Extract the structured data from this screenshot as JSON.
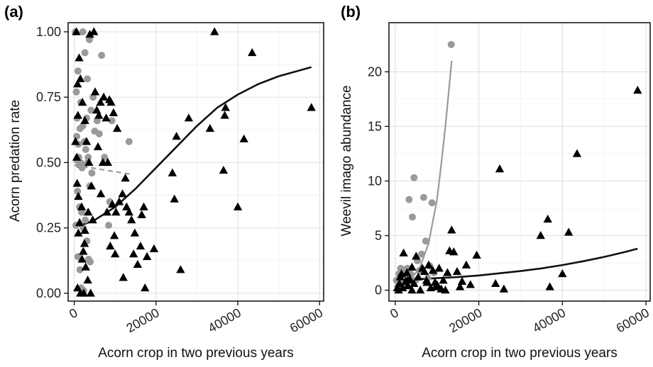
{
  "chart_data": [
    {
      "type": "scatter",
      "panel_label": "(a)",
      "xlabel": "Acorn crop in two previous years",
      "ylabel": "Acorn predation rate",
      "xlim": [
        -1500,
        61000
      ],
      "ylim": [
        -0.03,
        1.035
      ],
      "xticks": [
        0,
        20000,
        40000,
        60000
      ],
      "yticks": [
        0.0,
        0.25,
        0.5,
        0.75,
        1.0
      ],
      "ytick_labels": [
        "0.00",
        "0.25",
        "0.50",
        "0.75",
        "1.00"
      ],
      "grid": true,
      "series": [
        {
          "marker": "triangle",
          "color": "#000000",
          "points": [
            [
              500,
              1.0
            ],
            [
              800,
              0.8
            ],
            [
              300,
              0.58
            ],
            [
              600,
              0.52
            ],
            [
              1200,
              0.9
            ],
            [
              1500,
              0.82
            ],
            [
              900,
              0.68
            ],
            [
              2000,
              0.73
            ],
            [
              2600,
              0.66
            ],
            [
              3000,
              0.58
            ],
            [
              3600,
              0.5
            ],
            [
              4200,
              0.41
            ],
            [
              1800,
              0.33
            ],
            [
              1000,
              0.23
            ],
            [
              2200,
              0.16
            ],
            [
              2800,
              0.1
            ],
            [
              3300,
              0.05
            ],
            [
              4000,
              0.0
            ],
            [
              800,
              0.02
            ],
            [
              1500,
              0.0
            ],
            [
              2300,
              0.0
            ],
            [
              700,
              0.42
            ],
            [
              1300,
              0.27
            ],
            [
              3800,
              0.99
            ],
            [
              4800,
              1.0
            ],
            [
              5100,
              0.77
            ],
            [
              5500,
              0.7
            ],
            [
              6000,
              0.68
            ],
            [
              6400,
              0.73
            ],
            [
              7200,
              0.75
            ],
            [
              7800,
              0.67
            ],
            [
              8200,
              0.5
            ],
            [
              8600,
              0.74
            ],
            [
              9000,
              0.73
            ],
            [
              9600,
              0.69
            ],
            [
              10500,
              0.63
            ],
            [
              5800,
              0.56
            ],
            [
              7000,
              0.5
            ],
            [
              6500,
              0.38
            ],
            [
              9300,
              0.34
            ],
            [
              8000,
              0.31
            ],
            [
              10200,
              0.31
            ],
            [
              11000,
              0.35
            ],
            [
              11800,
              0.38
            ],
            [
              12800,
              0.33
            ],
            [
              13400,
              0.31
            ],
            [
              14000,
              0.28
            ],
            [
              14800,
              0.23
            ],
            [
              9800,
              0.22
            ],
            [
              12500,
              0.44
            ],
            [
              8800,
              0.18
            ],
            [
              10000,
              0.15
            ],
            [
              12000,
              0.06
            ],
            [
              14500,
              0.15
            ],
            [
              15500,
              0.11
            ],
            [
              16500,
              0.3
            ],
            [
              17000,
              0.33
            ],
            [
              17300,
              0.02
            ],
            [
              19500,
              0.17
            ],
            [
              17800,
              0.14
            ],
            [
              16200,
              0.18
            ],
            [
              24000,
              0.46
            ],
            [
              24500,
              0.36
            ],
            [
              25000,
              0.6
            ],
            [
              26000,
              0.09
            ],
            [
              28000,
              0.67
            ],
            [
              33200,
              0.63
            ],
            [
              34300,
              1.0
            ],
            [
              36500,
              0.47
            ],
            [
              36800,
              0.68
            ],
            [
              37000,
              0.71
            ],
            [
              40000,
              0.33
            ],
            [
              41500,
              0.59
            ],
            [
              43500,
              0.92
            ],
            [
              58000,
              0.71
            ],
            [
              1000,
              0.37
            ],
            [
              2500,
              0.19
            ],
            [
              1900,
              0.13
            ],
            [
              2600,
              0.24
            ],
            [
              4500,
              0.28
            ],
            [
              3400,
              0.31
            ]
          ]
        },
        {
          "marker": "circle",
          "color": "#9a9a9a",
          "points": [
            [
              300,
              1.0
            ],
            [
              500,
              0.77
            ],
            [
              900,
              0.85
            ],
            [
              1600,
              0.73
            ],
            [
              2100,
              1.0
            ],
            [
              2600,
              0.92
            ],
            [
              3200,
              0.82
            ],
            [
              3700,
              0.97
            ],
            [
              4100,
              0.7
            ],
            [
              4600,
              0.75
            ],
            [
              5000,
              0.62
            ],
            [
              5600,
              0.66
            ],
            [
              6100,
              0.61
            ],
            [
              6700,
              0.91
            ],
            [
              7400,
              0.52
            ],
            [
              700,
              0.67
            ],
            [
              1100,
              0.52
            ],
            [
              1500,
              0.5
            ],
            [
              1900,
              0.48
            ],
            [
              2400,
              0.49
            ],
            [
              2800,
              0.55
            ],
            [
              3300,
              0.5
            ],
            [
              3800,
              0.41
            ],
            [
              4300,
              0.46
            ],
            [
              800,
              0.39
            ],
            [
              1300,
              0.33
            ],
            [
              1800,
              0.31
            ],
            [
              2200,
              0.25
            ],
            [
              2700,
              0.28
            ],
            [
              3100,
              0.2
            ],
            [
              3500,
              0.13
            ],
            [
              3900,
              0.12
            ],
            [
              400,
              0.26
            ],
            [
              900,
              0.14
            ],
            [
              1400,
              0.09
            ],
            [
              1700,
              0.02
            ],
            [
              2300,
              0.01
            ],
            [
              600,
              0.6
            ],
            [
              1000,
              0.57
            ],
            [
              1400,
              0.63
            ],
            [
              2100,
              0.64
            ],
            [
              2500,
              0.58
            ],
            [
              3000,
              0.67
            ],
            [
              3400,
              0.52
            ],
            [
              8400,
              0.26
            ],
            [
              8700,
              0.35
            ],
            [
              9200,
              0.66
            ],
            [
              13400,
              0.58
            ],
            [
              600,
              0.51
            ],
            [
              1200,
              0.49
            ]
          ]
        }
      ],
      "fit_lines": [
        {
          "color": "#111111",
          "style": "solid",
          "points": [
            [
              0,
              0.25
            ],
            [
              5000,
              0.28
            ],
            [
              10000,
              0.33
            ],
            [
              15000,
              0.4
            ],
            [
              20000,
              0.48
            ],
            [
              25000,
              0.56
            ],
            [
              30000,
              0.64
            ],
            [
              35000,
              0.71
            ],
            [
              40000,
              0.76
            ],
            [
              45000,
              0.8
            ],
            [
              50000,
              0.83
            ],
            [
              58000,
              0.865
            ]
          ]
        },
        {
          "color": "#9a9a9a",
          "style": "dashed",
          "points": [
            [
              0,
              0.49
            ],
            [
              2000,
              0.485
            ],
            [
              4000,
              0.48
            ],
            [
              6000,
              0.475
            ],
            [
              8000,
              0.47
            ],
            [
              10000,
              0.465
            ],
            [
              12000,
              0.46
            ],
            [
              14000,
              0.455
            ]
          ]
        }
      ]
    },
    {
      "type": "scatter",
      "panel_label": "(b)",
      "xlabel": "Acorn crop in two previous years",
      "ylabel": "Weevil imago abundance",
      "xlim": [
        -1500,
        61000
      ],
      "ylim": [
        -1.0,
        24.5
      ],
      "xticks": [
        0,
        20000,
        40000,
        60000
      ],
      "yticks": [
        0,
        5,
        10,
        15,
        20
      ],
      "ytick_labels": [
        "0",
        "5",
        "10",
        "15",
        "20"
      ],
      "grid": true,
      "series": [
        {
          "marker": "triangle",
          "color": "#000000",
          "points": [
            [
              500,
              0.2
            ],
            [
              1000,
              0.6
            ],
            [
              1500,
              1.5
            ],
            [
              2000,
              3.4
            ],
            [
              2500,
              0.8
            ],
            [
              3000,
              0.4
            ],
            [
              3500,
              1.0
            ],
            [
              4000,
              2.1
            ],
            [
              4500,
              0.6
            ],
            [
              5000,
              3.1
            ],
            [
              5500,
              1.2
            ],
            [
              6000,
              0.0
            ],
            [
              6500,
              2.0
            ],
            [
              7000,
              1.7
            ],
            [
              7500,
              0.9
            ],
            [
              8000,
              2.3
            ],
            [
              8500,
              0.2
            ],
            [
              9000,
              1.8
            ],
            [
              9500,
              0.7
            ],
            [
              10000,
              0.5
            ],
            [
              10500,
              2.0
            ],
            [
              11000,
              0.1
            ],
            [
              11500,
              0.9
            ],
            [
              12000,
              0.0
            ],
            [
              12500,
              1.6
            ],
            [
              13000,
              3.6
            ],
            [
              13500,
              5.5
            ],
            [
              14000,
              3.5
            ],
            [
              14800,
              1.7
            ],
            [
              16000,
              0.8
            ],
            [
              17000,
              2.3
            ],
            [
              18000,
              0.5
            ],
            [
              19500,
              3.2
            ],
            [
              24000,
              0.6
            ],
            [
              25000,
              11.1
            ],
            [
              26000,
              0.1
            ],
            [
              34800,
              5.0
            ],
            [
              36500,
              6.5
            ],
            [
              37000,
              0.3
            ],
            [
              40000,
              1.5
            ],
            [
              41500,
              5.3
            ],
            [
              43500,
              12.5
            ],
            [
              58000,
              18.3
            ],
            [
              3000,
              0.9
            ],
            [
              4000,
              0.0
            ],
            [
              7600,
              0.7
            ],
            [
              9800,
              0.3
            ],
            [
              15500,
              0.3
            ],
            [
              1800,
              0.2
            ],
            [
              800,
              0.0
            ],
            [
              1200,
              1.2
            ],
            [
              2800,
              1.6
            ]
          ]
        },
        {
          "marker": "circle",
          "color": "#9a9a9a",
          "points": [
            [
              300,
              0.9
            ],
            [
              600,
              0.3
            ],
            [
              900,
              1.5
            ],
            [
              1300,
              2.0
            ],
            [
              1700,
              1.6
            ],
            [
              2100,
              1.2
            ],
            [
              2500,
              1.9
            ],
            [
              2900,
              2.0
            ],
            [
              3300,
              8.3
            ],
            [
              3700,
              1.5
            ],
            [
              4100,
              6.7
            ],
            [
              4500,
              10.3
            ],
            [
              4900,
              0.9
            ],
            [
              5300,
              2.7
            ],
            [
              5800,
              1.8
            ],
            [
              6300,
              3.3
            ],
            [
              6800,
              8.5
            ],
            [
              7300,
              4.5
            ],
            [
              7800,
              1.1
            ],
            [
              8300,
              2.2
            ],
            [
              8800,
              8.0
            ],
            [
              9300,
              1.6
            ],
            [
              13400,
              22.5
            ],
            [
              1100,
              0.4
            ],
            [
              1500,
              0.9
            ],
            [
              1900,
              0.5
            ],
            [
              2300,
              1.0
            ],
            [
              2700,
              0.7
            ]
          ]
        }
      ],
      "fit_lines": [
        {
          "color": "#111111",
          "style": "solid",
          "points": [
            [
              0,
              0.9
            ],
            [
              5000,
              1.0
            ],
            [
              10000,
              1.1
            ],
            [
              15000,
              1.2
            ],
            [
              20000,
              1.35
            ],
            [
              25000,
              1.55
            ],
            [
              30000,
              1.75
            ],
            [
              35000,
              2.0
            ],
            [
              40000,
              2.3
            ],
            [
              45000,
              2.65
            ],
            [
              50000,
              3.05
            ],
            [
              55000,
              3.5
            ],
            [
              58000,
              3.8
            ]
          ]
        },
        {
          "color": "#9a9a9a",
          "style": "solid",
          "points": [
            [
              0,
              0.2
            ],
            [
              2000,
              0.5
            ],
            [
              4000,
              1.1
            ],
            [
              6000,
              2.2
            ],
            [
              8000,
              4.3
            ],
            [
              10000,
              8.3
            ],
            [
              11000,
              11.5
            ],
            [
              12000,
              15.0
            ],
            [
              13000,
              19.0
            ],
            [
              13500,
              21.0
            ]
          ]
        }
      ]
    }
  ]
}
